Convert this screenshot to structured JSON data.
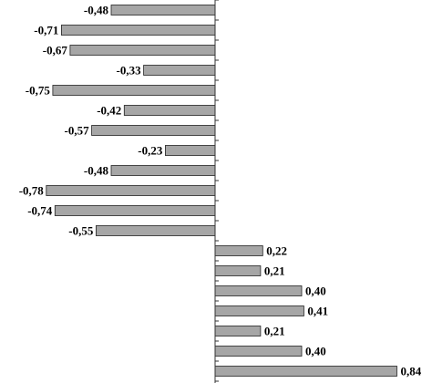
{
  "chart_data": {
    "type": "bar",
    "orientation": "horizontal",
    "values": [
      -0.48,
      -0.71,
      -0.67,
      -0.33,
      -0.75,
      -0.42,
      -0.57,
      -0.23,
      -0.48,
      -0.78,
      -0.74,
      -0.55,
      0.22,
      0.21,
      0.4,
      0.41,
      0.21,
      0.4,
      0.84
    ],
    "labels": [
      "-0,48",
      "-0,71",
      "-0,67",
      "-0,33",
      "-0,75",
      "-0,42",
      "-0,57",
      "-0,23",
      "-0,48",
      "-0,78",
      "-0,74",
      "-0,55",
      "0,22",
      "0,21",
      "0,40",
      "0,41",
      "0,21",
      "0,40",
      "0,84"
    ],
    "title": "",
    "xlabel": "",
    "ylabel": "",
    "xlim": [
      -0.8,
      0.85
    ],
    "grid": false,
    "legend": "none",
    "bar_color": "#a6a6a6"
  }
}
